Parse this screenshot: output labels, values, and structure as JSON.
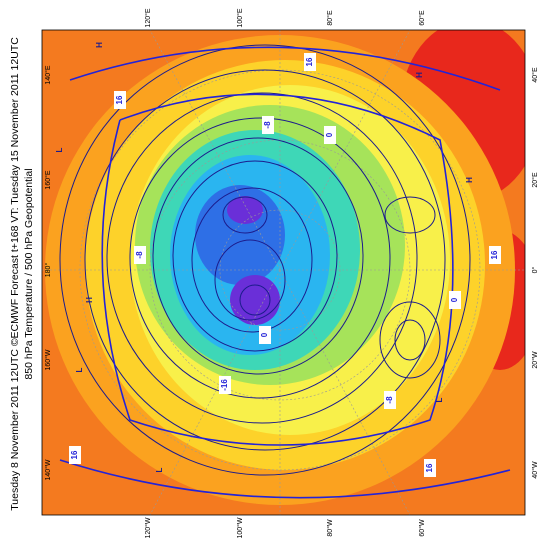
{
  "title": {
    "line1": "Tuesday 8 November 2011 12UTC ©ECMWF Forecast t+168 VT: Tuesday 15 November 2011 12UTC",
    "line2": "850 hPa Temperature / 500 hPa Geopotential"
  },
  "axis_labels": {
    "top": [
      "120°E",
      "100°E",
      "80°E",
      "60°E"
    ],
    "bottom": [
      "120°W",
      "100°W",
      "80°W",
      "60°W"
    ],
    "left": [
      "140°E",
      "160°E",
      "180°",
      "160°W",
      "140°W"
    ],
    "right": [
      "40°E",
      "20°E",
      "0°",
      "20°W",
      "40°W"
    ]
  },
  "map_labels": [
    "16",
    "16",
    "16",
    "16",
    "16",
    "0",
    "0",
    "0",
    "-8",
    "-8",
    "-8",
    "-16",
    "H",
    "H",
    "H",
    "H",
    "L",
    "L",
    "L",
    "L"
  ]
}
